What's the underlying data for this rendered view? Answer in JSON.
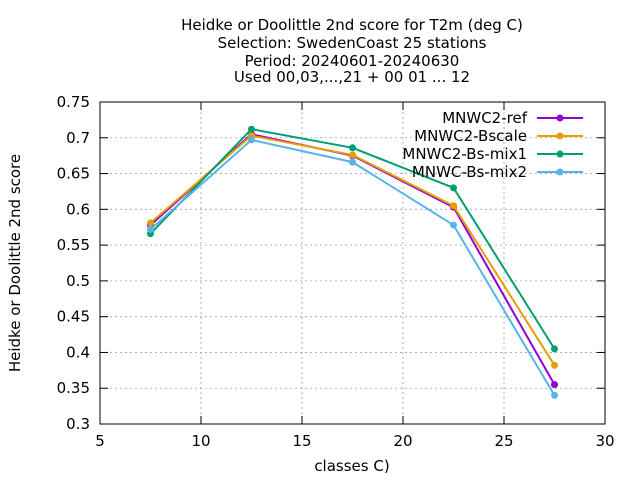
{
  "chart_data": {
    "type": "line",
    "title_lines": [
      "Heidke or Doolittle 2nd score  for T2m (deg C)",
      "Selection: SwedenCoast     25 stations",
      "Period: 20240601-20240630",
      "Used 00,03,...,21 + 00 01 ... 12"
    ],
    "xlabel": "classes C)",
    "ylabel": "Heidke or Doolittle 2nd score",
    "xlim": [
      5,
      30
    ],
    "ylim": [
      0.3,
      0.75
    ],
    "xticks": [
      5,
      10,
      15,
      20,
      25,
      30
    ],
    "yticks": [
      0.3,
      0.35,
      0.4,
      0.45,
      0.5,
      0.55,
      0.6,
      0.65,
      0.7,
      0.75
    ],
    "ytick_labels": [
      "0.3",
      "0.35",
      "0.4",
      "0.45",
      "0.5",
      "0.55",
      "0.6",
      "0.65",
      "0.7",
      "0.75"
    ],
    "grid": true,
    "legend_position": "top-right",
    "x": [
      7.5,
      12.5,
      17.5,
      22.5,
      27.5
    ],
    "series": [
      {
        "name": "MNWC2-ref",
        "color": "#9400d3",
        "values": [
          0.578,
          0.705,
          0.675,
          0.603,
          0.355
        ]
      },
      {
        "name": "MNWC2-Bscale",
        "color": "#e69f00",
        "values": [
          0.581,
          0.703,
          0.676,
          0.605,
          0.382
        ]
      },
      {
        "name": "MNWC2-Bs-mix1",
        "color": "#009e73",
        "values": [
          0.566,
          0.712,
          0.686,
          0.63,
          0.405
        ]
      },
      {
        "name": "MNWC-Bs-mix2",
        "color": "#56b4e9",
        "values": [
          0.572,
          0.697,
          0.666,
          0.578,
          0.34
        ]
      }
    ]
  }
}
